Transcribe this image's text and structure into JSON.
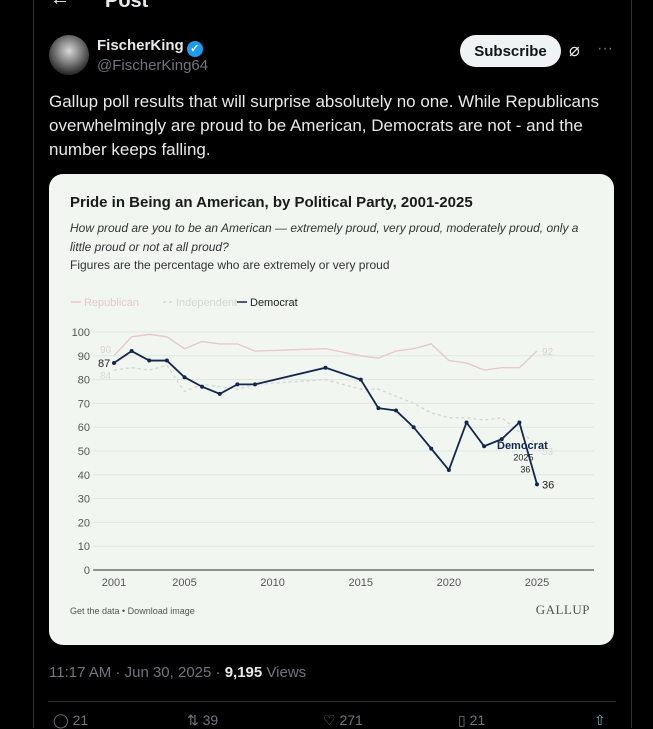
{
  "header": {
    "title": "Post",
    "back_icon": "arrow-left-icon"
  },
  "author": {
    "name": "FischerKing",
    "handle": "@FischerKing64",
    "verified": true
  },
  "subscribe_label": "Subscribe",
  "tweet_text": "Gallup poll results that will surprise absolutely no one. While Republicans overwhelmingly are proud to be American, Democrats are not - and the number keeps falling.",
  "meta": {
    "time": "11:17 AM",
    "date": "Jun 30, 2025",
    "views_count": "9,195",
    "views_label": "Views",
    "sep": " · "
  },
  "actions": {
    "replies": "21",
    "reposts": "39",
    "likes": "271",
    "bookmarks": "21"
  },
  "card": {
    "get_data": "Get the data • Download image",
    "brand": "GALLUP"
  },
  "chart_data": {
    "type": "line",
    "title": "Pride in Being an American, by Political Party, 2001-2025",
    "subtitle": "How proud are you to be an American — extremely proud, very proud, moderately proud, only a little proud or not at all proud?",
    "note": "Figures are the percentage who are extremely or very proud",
    "ylim": [
      0,
      100
    ],
    "yticks": [
      0,
      10,
      20,
      30,
      40,
      50,
      60,
      70,
      80,
      90,
      100
    ],
    "xticks": [
      2001,
      2005,
      2010,
      2015,
      2020,
      2025
    ],
    "legend": [
      "Republican",
      "Independent",
      "Democrat"
    ],
    "x": [
      2001,
      2002,
      2003,
      2004,
      2005,
      2006,
      2007,
      2008,
      2009,
      2013,
      2015,
      2016,
      2017,
      2018,
      2019,
      2020,
      2021,
      2022,
      2023,
      2024,
      2025
    ],
    "series": [
      {
        "name": "Republican",
        "color": "#e8c9c9",
        "dash": false,
        "values": [
          90,
          98,
          99,
          98,
          93,
          96,
          95,
          95,
          92,
          93,
          90,
          89,
          92,
          93,
          95,
          88,
          87,
          84,
          85,
          85,
          92
        ]
      },
      {
        "name": "Independent",
        "color": "#d3d8d3",
        "dash": true,
        "values": [
          84,
          85,
          84,
          86,
          75,
          78,
          77,
          76,
          78,
          80,
          76,
          76,
          73,
          70,
          66,
          64,
          64,
          63,
          64,
          58,
          53
        ]
      },
      {
        "name": "Democrat",
        "color": "#13264f",
        "dash": false,
        "values": [
          87,
          92,
          88,
          88,
          81,
          77,
          74,
          78,
          78,
          85,
          80,
          68,
          67,
          60,
          51,
          42,
          62,
          52,
          55,
          62,
          36
        ]
      }
    ],
    "labels": {
      "dem_start": "87",
      "rep_start": "90",
      "ind_start": "84",
      "rep_end": "92",
      "ind_end": "53",
      "dem_end": "36",
      "dem_callout": "Democrat",
      "callout_year": "2025",
      "callout_value": "36"
    }
  }
}
